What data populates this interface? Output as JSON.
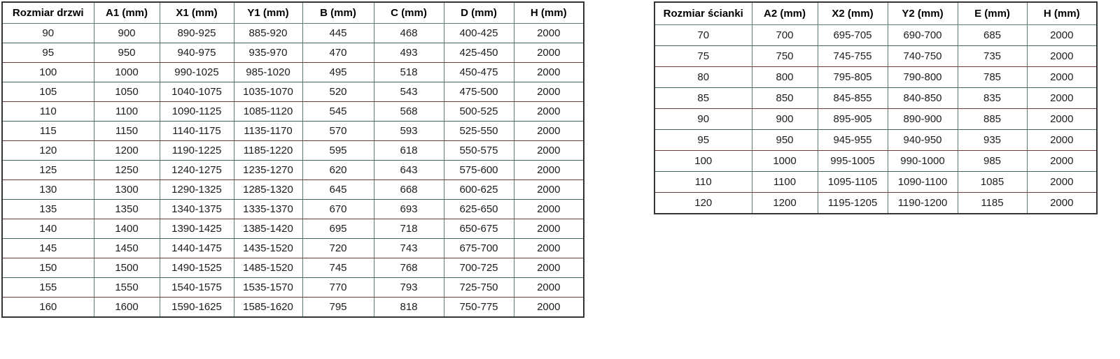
{
  "page": {
    "background": "#ffffff",
    "text_color": "#1c1c1c"
  },
  "colors": {
    "outer_border": "#343434",
    "vertical_grid": "#5d7c70",
    "horizontal_grid_red": "#6e3c3c",
    "horizontal_grid_green": "#44695c",
    "header_text": "#000000",
    "cell_text": "#1c1c1c"
  },
  "tables": [
    {
      "name": "door-size-table",
      "headers": [
        "Rozmiar drzwi",
        "A1 (mm)",
        "X1 (mm)",
        "Y1 (mm)",
        "B (mm)",
        "C (mm)",
        "D (mm)",
        "H (mm)"
      ],
      "rows": [
        [
          "90",
          "900",
          "890-925",
          "885-920",
          "445",
          "468",
          "400-425",
          "2000"
        ],
        [
          "95",
          "950",
          "940-975",
          "935-970",
          "470",
          "493",
          "425-450",
          "2000"
        ],
        [
          "100",
          "1000",
          "990-1025",
          "985-1020",
          "495",
          "518",
          "450-475",
          "2000"
        ],
        [
          "105",
          "1050",
          "1040-1075",
          "1035-1070",
          "520",
          "543",
          "475-500",
          "2000"
        ],
        [
          "110",
          "1100",
          "1090-1125",
          "1085-1120",
          "545",
          "568",
          "500-525",
          "2000"
        ],
        [
          "115",
          "1150",
          "1140-1175",
          "1135-1170",
          "570",
          "593",
          "525-550",
          "2000"
        ],
        [
          "120",
          "1200",
          "1190-1225",
          "1185-1220",
          "595",
          "618",
          "550-575",
          "2000"
        ],
        [
          "125",
          "1250",
          "1240-1275",
          "1235-1270",
          "620",
          "643",
          "575-600",
          "2000"
        ],
        [
          "130",
          "1300",
          "1290-1325",
          "1285-1320",
          "645",
          "668",
          "600-625",
          "2000"
        ],
        [
          "135",
          "1350",
          "1340-1375",
          "1335-1370",
          "670",
          "693",
          "625-650",
          "2000"
        ],
        [
          "140",
          "1400",
          "1390-1425",
          "1385-1420",
          "695",
          "718",
          "650-675",
          "2000"
        ],
        [
          "145",
          "1450",
          "1440-1475",
          "1435-1520",
          "720",
          "743",
          "675-700",
          "2000"
        ],
        [
          "150",
          "1500",
          "1490-1525",
          "1485-1520",
          "745",
          "768",
          "700-725",
          "2000"
        ],
        [
          "155",
          "1550",
          "1540-1575",
          "1535-1570",
          "770",
          "793",
          "725-750",
          "2000"
        ],
        [
          "160",
          "1600",
          "1590-1625",
          "1585-1620",
          "795",
          "818",
          "750-775",
          "2000"
        ]
      ]
    },
    {
      "name": "wall-panel-size-table",
      "headers": [
        "Rozmiar ścianki",
        "A2 (mm)",
        "X2 (mm)",
        "Y2 (mm)",
        "E (mm)",
        "H (mm)"
      ],
      "rows": [
        [
          "70",
          "700",
          "695-705",
          "690-700",
          "685",
          "2000"
        ],
        [
          "75",
          "750",
          "745-755",
          "740-750",
          "735",
          "2000"
        ],
        [
          "80",
          "800",
          "795-805",
          "790-800",
          "785",
          "2000"
        ],
        [
          "85",
          "850",
          "845-855",
          "840-850",
          "835",
          "2000"
        ],
        [
          "90",
          "900",
          "895-905",
          "890-900",
          "885",
          "2000"
        ],
        [
          "95",
          "950",
          "945-955",
          "940-950",
          "935",
          "2000"
        ],
        [
          "100",
          "1000",
          "995-1005",
          "990-1000",
          "985",
          "2000"
        ],
        [
          "110",
          "1100",
          "1095-1105",
          "1090-1100",
          "1085",
          "2000"
        ],
        [
          "120",
          "1200",
          "1195-1205",
          "1190-1200",
          "1185",
          "2000"
        ]
      ]
    }
  ]
}
